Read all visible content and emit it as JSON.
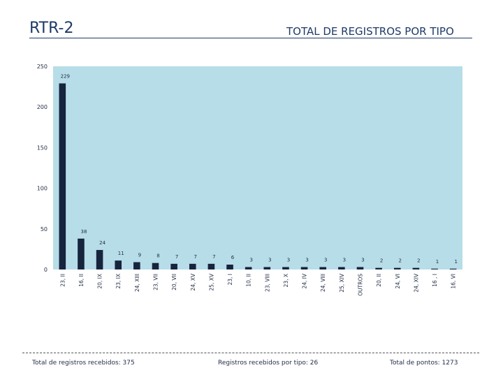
{
  "header": {
    "left_title": "RTR-2",
    "right_title": "TOTAL DE REGISTROS POR TIPO"
  },
  "footer": {
    "total_registros": "Total de registros recebidos: 375",
    "registros_por_tipo": "Registros recebidos por tipo: 26",
    "total_pontos": "Total de pontos: 1273"
  },
  "colors": {
    "plot_background": "#b7dde8",
    "bar": "#17243d"
  },
  "chart_data": {
    "type": "bar",
    "categories": [
      "23, II",
      "16, II",
      "20, IX",
      "23, IX",
      "24, XIII",
      "23, VII",
      "20, VII",
      "24, XV",
      "25, XV",
      "23, I",
      "10, II",
      "23, VIII",
      "23, X",
      "24, IV",
      "24, VIII",
      "25, XIV",
      "OUTROS",
      "20, II",
      "24, VI",
      "24, XIV",
      "16 , I",
      "16, VI"
    ],
    "values": [
      229,
      38,
      24,
      11,
      9,
      8,
      7,
      7,
      7,
      6,
      3,
      3,
      3,
      3,
      3,
      3,
      3,
      2,
      2,
      2,
      1,
      1
    ],
    "ylim": [
      0,
      250
    ],
    "yticks": [
      0,
      50,
      100,
      150,
      200,
      250
    ],
    "grid": false,
    "legend": "none"
  }
}
